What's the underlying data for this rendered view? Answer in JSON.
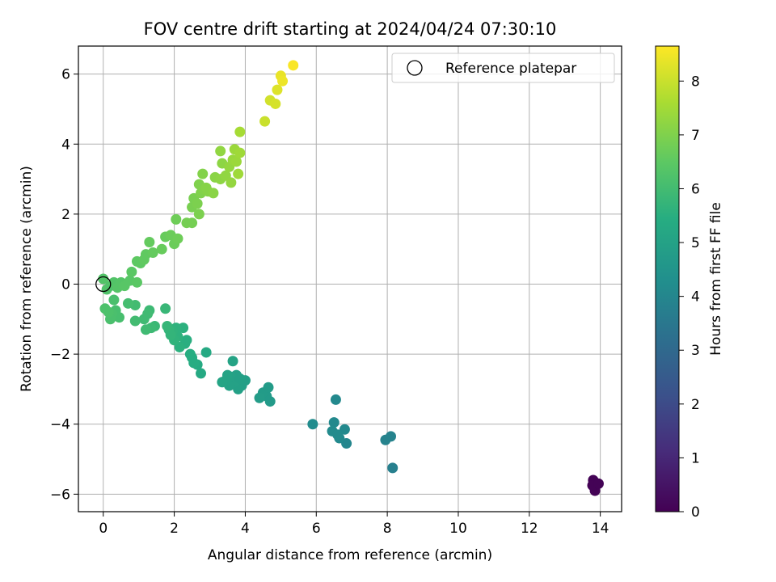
{
  "chart_data": {
    "type": "scatter",
    "title": "FOV centre drift starting at 2024/04/24 07:30:10",
    "xlabel": "Angular distance from reference (arcmin)",
    "ylabel": "Rotation from reference (arcmin)",
    "xlim": [
      -0.7,
      14.6
    ],
    "ylim": [
      -6.5,
      6.8
    ],
    "xticks": [
      0,
      2,
      4,
      6,
      8,
      10,
      12,
      14
    ],
    "yticks": [
      -6,
      -4,
      -2,
      0,
      2,
      4,
      6
    ],
    "grid": true,
    "legend": {
      "placement": "top-right",
      "entries": [
        "Reference platepar"
      ]
    },
    "reference_point": {
      "x": 0,
      "y": 0
    },
    "colorbar": {
      "label": "Hours from first FF file",
      "colormap": "viridis",
      "range": [
        0,
        8.65
      ],
      "ticks": [
        0,
        1,
        2,
        3,
        4,
        5,
        6,
        7,
        8
      ]
    },
    "points": [
      {
        "x": 13.8,
        "y": -5.6,
        "t": 0.05
      },
      {
        "x": 13.9,
        "y": -5.7,
        "t": 0.05
      },
      {
        "x": 13.85,
        "y": -5.9,
        "t": 0.05
      },
      {
        "x": 13.78,
        "y": -5.75,
        "t": 0.05
      },
      {
        "x": 13.95,
        "y": -5.7,
        "t": 0.05
      },
      {
        "x": 8.15,
        "y": -5.25,
        "t": 3.8
      },
      {
        "x": 8.1,
        "y": -4.35,
        "t": 3.9
      },
      {
        "x": 7.95,
        "y": -4.45,
        "t": 3.9
      },
      {
        "x": 6.85,
        "y": -4.55,
        "t": 4.0
      },
      {
        "x": 6.8,
        "y": -4.15,
        "t": 4.1
      },
      {
        "x": 6.65,
        "y": -4.4,
        "t": 4.1
      },
      {
        "x": 6.5,
        "y": -3.95,
        "t": 4.1
      },
      {
        "x": 6.45,
        "y": -4.2,
        "t": 4.15
      },
      {
        "x": 6.6,
        "y": -4.3,
        "t": 4.15
      },
      {
        "x": 6.55,
        "y": -3.3,
        "t": 4.1
      },
      {
        "x": 5.9,
        "y": -4.0,
        "t": 4.2
      },
      {
        "x": 4.7,
        "y": -3.35,
        "t": 4.7
      },
      {
        "x": 4.6,
        "y": -3.2,
        "t": 4.7
      },
      {
        "x": 4.5,
        "y": -3.1,
        "t": 4.75
      },
      {
        "x": 4.65,
        "y": -2.95,
        "t": 4.75
      },
      {
        "x": 4.4,
        "y": -3.25,
        "t": 4.8
      },
      {
        "x": 4.0,
        "y": -2.75,
        "t": 4.9
      },
      {
        "x": 3.9,
        "y": -2.9,
        "t": 4.9
      },
      {
        "x": 3.8,
        "y": -3.0,
        "t": 4.95
      },
      {
        "x": 3.75,
        "y": -2.6,
        "t": 4.95
      },
      {
        "x": 3.7,
        "y": -2.8,
        "t": 5.0
      },
      {
        "x": 3.6,
        "y": -2.65,
        "t": 5.0
      },
      {
        "x": 3.55,
        "y": -2.9,
        "t": 5.0
      },
      {
        "x": 3.5,
        "y": -2.6,
        "t": 5.05
      },
      {
        "x": 3.45,
        "y": -2.75,
        "t": 5.05
      },
      {
        "x": 3.35,
        "y": -2.8,
        "t": 5.1
      },
      {
        "x": 3.65,
        "y": -2.2,
        "t": 5.05
      },
      {
        "x": 3.85,
        "y": -2.7,
        "t": 4.95
      },
      {
        "x": 2.9,
        "y": -1.95,
        "t": 5.3
      },
      {
        "x": 2.75,
        "y": -2.55,
        "t": 5.3
      },
      {
        "x": 2.65,
        "y": -2.3,
        "t": 5.35
      },
      {
        "x": 2.55,
        "y": -2.25,
        "t": 5.4
      },
      {
        "x": 2.5,
        "y": -2.1,
        "t": 5.4
      },
      {
        "x": 2.45,
        "y": -2.0,
        "t": 5.45
      },
      {
        "x": 2.35,
        "y": -1.6,
        "t": 5.5
      },
      {
        "x": 2.3,
        "y": -1.7,
        "t": 5.5
      },
      {
        "x": 2.25,
        "y": -1.25,
        "t": 5.55
      },
      {
        "x": 2.15,
        "y": -1.8,
        "t": 5.55
      },
      {
        "x": 2.1,
        "y": -1.5,
        "t": 5.6
      },
      {
        "x": 2.05,
        "y": -1.25,
        "t": 5.6
      },
      {
        "x": 2.0,
        "y": -1.6,
        "t": 5.65
      },
      {
        "x": 1.95,
        "y": -1.35,
        "t": 5.65
      },
      {
        "x": 1.9,
        "y": -1.45,
        "t": 5.7
      },
      {
        "x": 1.85,
        "y": -1.3,
        "t": 5.7
      },
      {
        "x": 1.8,
        "y": -1.2,
        "t": 5.75
      },
      {
        "x": 1.75,
        "y": -0.7,
        "t": 5.8
      },
      {
        "x": 1.45,
        "y": -1.2,
        "t": 5.85
      },
      {
        "x": 1.35,
        "y": -1.25,
        "t": 5.9
      },
      {
        "x": 1.3,
        "y": -0.75,
        "t": 5.9
      },
      {
        "x": 1.2,
        "y": -1.3,
        "t": 5.95
      },
      {
        "x": 1.15,
        "y": -1.0,
        "t": 5.95
      },
      {
        "x": 1.25,
        "y": -0.85,
        "t": 5.95
      },
      {
        "x": 0.9,
        "y": -1.05,
        "t": 6.0
      },
      {
        "x": 0.9,
        "y": -0.6,
        "t": 6.0
      },
      {
        "x": 0.7,
        "y": -0.55,
        "t": 6.05
      },
      {
        "x": 0.45,
        "y": -0.95,
        "t": 6.1
      },
      {
        "x": 0.35,
        "y": -0.75,
        "t": 6.1
      },
      {
        "x": 0.3,
        "y": -0.45,
        "t": 6.15
      },
      {
        "x": 0.25,
        "y": -0.85,
        "t": 6.15
      },
      {
        "x": 0.2,
        "y": -1.0,
        "t": 6.15
      },
      {
        "x": 0.15,
        "y": -0.8,
        "t": 6.2
      },
      {
        "x": 0.05,
        "y": -0.7,
        "t": 6.2
      },
      {
        "x": 0.1,
        "y": -0.15,
        "t": 6.25
      },
      {
        "x": 0.2,
        "y": -0.05,
        "t": 6.25
      },
      {
        "x": 0.0,
        "y": 0.15,
        "t": 6.3
      },
      {
        "x": 0.3,
        "y": 0.05,
        "t": 6.3
      },
      {
        "x": 0.4,
        "y": -0.1,
        "t": 6.35
      },
      {
        "x": 0.5,
        "y": 0.05,
        "t": 6.35
      },
      {
        "x": 0.6,
        "y": -0.05,
        "t": 6.4
      },
      {
        "x": 0.75,
        "y": 0.1,
        "t": 6.4
      },
      {
        "x": 0.8,
        "y": 0.35,
        "t": 6.45
      },
      {
        "x": 0.95,
        "y": 0.05,
        "t": 6.45
      },
      {
        "x": 0.95,
        "y": 0.65,
        "t": 6.5
      },
      {
        "x": 1.05,
        "y": 0.6,
        "t": 6.5
      },
      {
        "x": 1.15,
        "y": 0.7,
        "t": 6.55
      },
      {
        "x": 1.2,
        "y": 0.85,
        "t": 6.55
      },
      {
        "x": 1.3,
        "y": 1.2,
        "t": 6.6
      },
      {
        "x": 1.4,
        "y": 0.9,
        "t": 6.6
      },
      {
        "x": 1.65,
        "y": 1.0,
        "t": 6.65
      },
      {
        "x": 1.75,
        "y": 1.35,
        "t": 6.65
      },
      {
        "x": 1.9,
        "y": 1.4,
        "t": 6.7
      },
      {
        "x": 2.0,
        "y": 1.15,
        "t": 6.7
      },
      {
        "x": 2.1,
        "y": 1.3,
        "t": 6.75
      },
      {
        "x": 2.05,
        "y": 1.85,
        "t": 6.75
      },
      {
        "x": 2.35,
        "y": 1.75,
        "t": 6.85
      },
      {
        "x": 2.5,
        "y": 1.75,
        "t": 6.85
      },
      {
        "x": 2.5,
        "y": 2.2,
        "t": 6.9
      },
      {
        "x": 2.55,
        "y": 2.45,
        "t": 6.9
      },
      {
        "x": 2.65,
        "y": 2.3,
        "t": 6.95
      },
      {
        "x": 2.7,
        "y": 2.0,
        "t": 6.95
      },
      {
        "x": 2.7,
        "y": 2.85,
        "t": 7.0
      },
      {
        "x": 2.75,
        "y": 2.6,
        "t": 7.0
      },
      {
        "x": 2.8,
        "y": 3.15,
        "t": 7.05
      },
      {
        "x": 2.85,
        "y": 2.7,
        "t": 7.05
      },
      {
        "x": 2.9,
        "y": 2.75,
        "t": 7.1
      },
      {
        "x": 2.95,
        "y": 2.65,
        "t": 7.1
      },
      {
        "x": 3.1,
        "y": 2.6,
        "t": 7.15
      },
      {
        "x": 3.15,
        "y": 3.05,
        "t": 7.15
      },
      {
        "x": 3.3,
        "y": 3.0,
        "t": 7.2
      },
      {
        "x": 3.35,
        "y": 3.45,
        "t": 7.2
      },
      {
        "x": 3.3,
        "y": 3.8,
        "t": 7.25
      },
      {
        "x": 3.45,
        "y": 3.1,
        "t": 7.25
      },
      {
        "x": 3.55,
        "y": 3.35,
        "t": 7.3
      },
      {
        "x": 3.6,
        "y": 2.9,
        "t": 7.3
      },
      {
        "x": 3.65,
        "y": 3.55,
        "t": 7.35
      },
      {
        "x": 3.7,
        "y": 3.85,
        "t": 7.4
      },
      {
        "x": 3.75,
        "y": 3.5,
        "t": 7.4
      },
      {
        "x": 3.8,
        "y": 3.15,
        "t": 7.45
      },
      {
        "x": 3.85,
        "y": 3.75,
        "t": 7.45
      },
      {
        "x": 3.85,
        "y": 4.35,
        "t": 7.55
      },
      {
        "x": 4.55,
        "y": 4.65,
        "t": 8.0
      },
      {
        "x": 4.7,
        "y": 5.25,
        "t": 8.1
      },
      {
        "x": 4.85,
        "y": 5.15,
        "t": 8.15
      },
      {
        "x": 4.9,
        "y": 5.55,
        "t": 8.25
      },
      {
        "x": 5.0,
        "y": 5.95,
        "t": 8.4
      },
      {
        "x": 5.05,
        "y": 5.8,
        "t": 8.45
      },
      {
        "x": 5.35,
        "y": 6.25,
        "t": 8.6
      }
    ]
  }
}
